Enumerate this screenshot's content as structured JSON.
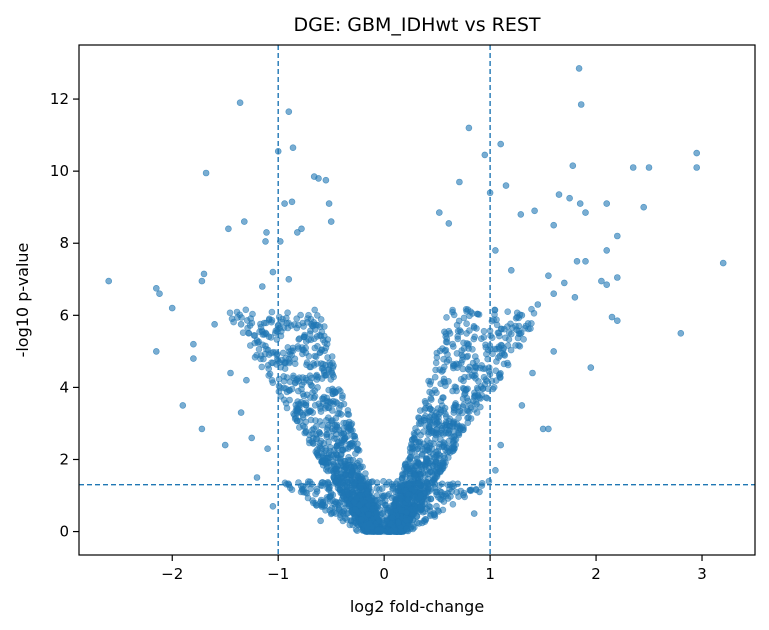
{
  "chart_data": {
    "type": "scatter",
    "title": "DGE: GBM_IDHwt vs REST",
    "xlabel": "log2 fold-change",
    "ylabel": "-log10 p-value",
    "xlim": [
      -2.88,
      3.5
    ],
    "ylim": [
      -0.65,
      13.5
    ],
    "xticks": [
      -2,
      -1,
      0,
      1,
      2,
      3
    ],
    "xtick_labels": [
      "−2",
      "−1",
      "0",
      "1",
      "2",
      "3"
    ],
    "yticks": [
      0,
      2,
      4,
      6,
      8,
      10,
      12
    ],
    "ytick_labels": [
      "0",
      "2",
      "4",
      "6",
      "8",
      "10",
      "12"
    ],
    "grid": false,
    "point_color": "#1f77b4",
    "threshold_lines": {
      "x": [
        -1,
        1
      ],
      "y": 1.3,
      "style": "dashed"
    },
    "series": [
      {
        "points": [
          [
            1.84,
            12.85
          ],
          [
            1.86,
            11.85
          ],
          [
            -1.36,
            11.9
          ],
          [
            -0.9,
            11.65
          ],
          [
            0.8,
            11.2
          ],
          [
            -1.0,
            10.55
          ],
          [
            -0.86,
            10.65
          ],
          [
            1.1,
            10.75
          ],
          [
            2.35,
            10.1
          ],
          [
            2.5,
            10.1
          ],
          [
            2.95,
            10.5
          ],
          [
            2.95,
            10.1
          ],
          [
            1.78,
            10.15
          ],
          [
            -1.68,
            9.95
          ],
          [
            0.95,
            10.45
          ],
          [
            1.0,
            9.4
          ],
          [
            0.71,
            9.7
          ],
          [
            -0.62,
            9.8
          ],
          [
            -0.66,
            9.85
          ],
          [
            -0.55,
            9.75
          ],
          [
            -0.94,
            9.1
          ],
          [
            -0.87,
            9.15
          ],
          [
            2.45,
            9.0
          ],
          [
            1.65,
            9.35
          ],
          [
            1.75,
            9.25
          ],
          [
            1.85,
            9.1
          ],
          [
            2.1,
            9.1
          ],
          [
            1.15,
            9.6
          ],
          [
            1.42,
            8.9
          ],
          [
            1.9,
            8.85
          ],
          [
            -0.52,
            9.1
          ],
          [
            -0.5,
            8.6
          ],
          [
            -1.32,
            8.6
          ],
          [
            -1.47,
            8.4
          ],
          [
            0.52,
            8.85
          ],
          [
            2.2,
            8.2
          ],
          [
            0.61,
            8.55
          ],
          [
            1.29,
            8.8
          ],
          [
            1.6,
            8.5
          ],
          [
            -1.11,
            8.3
          ],
          [
            -0.78,
            8.4
          ],
          [
            -0.82,
            8.3
          ],
          [
            -0.98,
            8.05
          ],
          [
            -1.12,
            8.05
          ],
          [
            2.1,
            7.8
          ],
          [
            -2.6,
            6.95
          ],
          [
            -2.15,
            6.75
          ],
          [
            -2.12,
            6.6
          ],
          [
            -2.0,
            6.2
          ],
          [
            -1.7,
            7.15
          ],
          [
            -1.72,
            6.95
          ],
          [
            3.2,
            7.45
          ],
          [
            2.2,
            7.05
          ],
          [
            2.05,
            6.95
          ],
          [
            2.1,
            6.85
          ],
          [
            2.8,
            5.5
          ],
          [
            2.15,
            5.95
          ],
          [
            2.2,
            5.85
          ],
          [
            1.82,
            7.5
          ],
          [
            1.9,
            7.5
          ],
          [
            1.55,
            7.1
          ],
          [
            1.7,
            6.9
          ],
          [
            1.8,
            6.5
          ],
          [
            1.6,
            6.6
          ],
          [
            -2.15,
            5.0
          ],
          [
            -1.8,
            5.2
          ],
          [
            -1.8,
            4.8
          ],
          [
            -1.6,
            5.75
          ],
          [
            -1.35,
            5.75
          ],
          [
            1.95,
            4.55
          ],
          [
            1.6,
            5.0
          ],
          [
            -1.9,
            3.5
          ],
          [
            -1.72,
            2.85
          ],
          [
            -1.5,
            2.4
          ],
          [
            -1.35,
            3.3
          ],
          [
            1.55,
            2.85
          ],
          [
            1.5,
            2.85
          ],
          [
            1.3,
            3.5
          ],
          [
            -1.3,
            4.2
          ],
          [
            1.4,
            4.4
          ],
          [
            -1.45,
            4.4
          ],
          [
            -1.2,
            5.3
          ],
          [
            1.25,
            5.6
          ],
          [
            1.45,
            6.3
          ],
          [
            -1.15,
            6.8
          ],
          [
            -1.05,
            7.2
          ],
          [
            -0.9,
            7.0
          ],
          [
            1.05,
            7.8
          ],
          [
            1.2,
            7.25
          ],
          [
            1.3,
            6.0
          ],
          [
            -1.25,
            2.6
          ],
          [
            -1.1,
            2.3
          ],
          [
            1.1,
            2.4
          ],
          [
            1.05,
            1.7
          ],
          [
            -1.2,
            1.5
          ],
          [
            -1.05,
            0.7
          ],
          [
            -0.9,
            1.3
          ],
          [
            0.85,
            0.5
          ],
          [
            0.9,
            1.1
          ],
          [
            -0.6,
            0.3
          ]
        ]
      }
    ],
    "dense_core": {
      "note_free": true,
      "left_arm": {
        "center_x": -0.5,
        "half_width": 0.32
      },
      "right_arm": {
        "center_x": 0.5,
        "half_width": 0.32
      }
    }
  }
}
